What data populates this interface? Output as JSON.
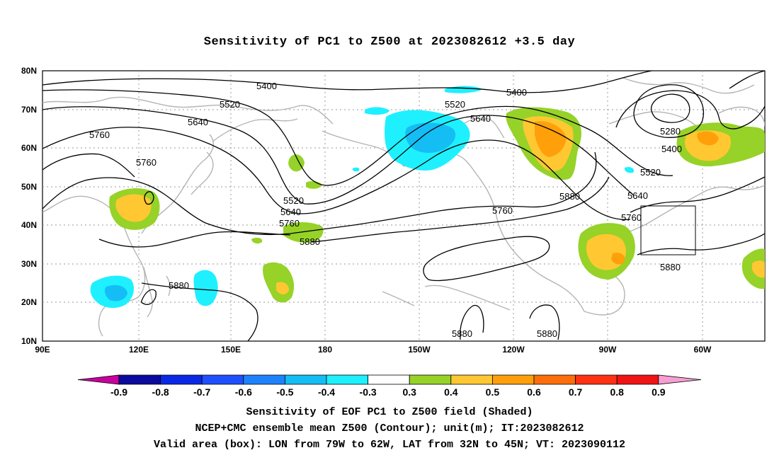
{
  "title": "Sensitivity of PC1 to Z500 at 2023082612 +3.5 day",
  "lat_ticks": [
    "80N",
    "70N",
    "60N",
    "50N",
    "40N",
    "30N",
    "20N",
    "10N"
  ],
  "lon_ticks": [
    "90E",
    "120E",
    "150E",
    "180",
    "150W",
    "120W",
    "90W",
    "60W"
  ],
  "contour_labels": [
    {
      "text": "5400"
    },
    {
      "text": "5520"
    },
    {
      "text": "5640"
    },
    {
      "text": "5760"
    },
    {
      "text": "5760"
    },
    {
      "text": "5400"
    },
    {
      "text": "5520"
    },
    {
      "text": "5640"
    },
    {
      "text": "5520"
    },
    {
      "text": "5640"
    },
    {
      "text": "5760"
    },
    {
      "text": "5880"
    },
    {
      "text": "5760"
    },
    {
      "text": "5880"
    },
    {
      "text": "5880"
    },
    {
      "text": "5280"
    },
    {
      "text": "5400"
    },
    {
      "text": "5520"
    },
    {
      "text": "5640"
    },
    {
      "text": "5760"
    },
    {
      "text": "5880"
    },
    {
      "text": "5880"
    },
    {
      "text": "5880"
    }
  ],
  "colorbar": {
    "colors": [
      "#c8009e",
      "#0a0a9e",
      "#0a28e6",
      "#1e50ff",
      "#1e82ff",
      "#14bef5",
      "#1ef0ff",
      "#ffffff",
      "#96d228",
      "#ffc832",
      "#ffa00a",
      "#ff6e0a",
      "#ff3214",
      "#f01414",
      "#f79ed2"
    ],
    "labels": [
      "-0.9",
      "-0.8",
      "-0.7",
      "-0.6",
      "-0.5",
      "-0.4",
      "-0.3",
      "0.3",
      "0.4",
      "0.5",
      "0.6",
      "0.7",
      "0.8",
      "0.9"
    ]
  },
  "caption_lines": [
    "Sensitivity of EOF PC1 to Z500 field (Shaded)",
    "NCEP+CMC ensemble mean Z500 (Contour); unit(m); IT:2023082612",
    "Valid area (box): LON from 79W to 62W, LAT from 32N to 45N; VT: 2023090112"
  ]
}
